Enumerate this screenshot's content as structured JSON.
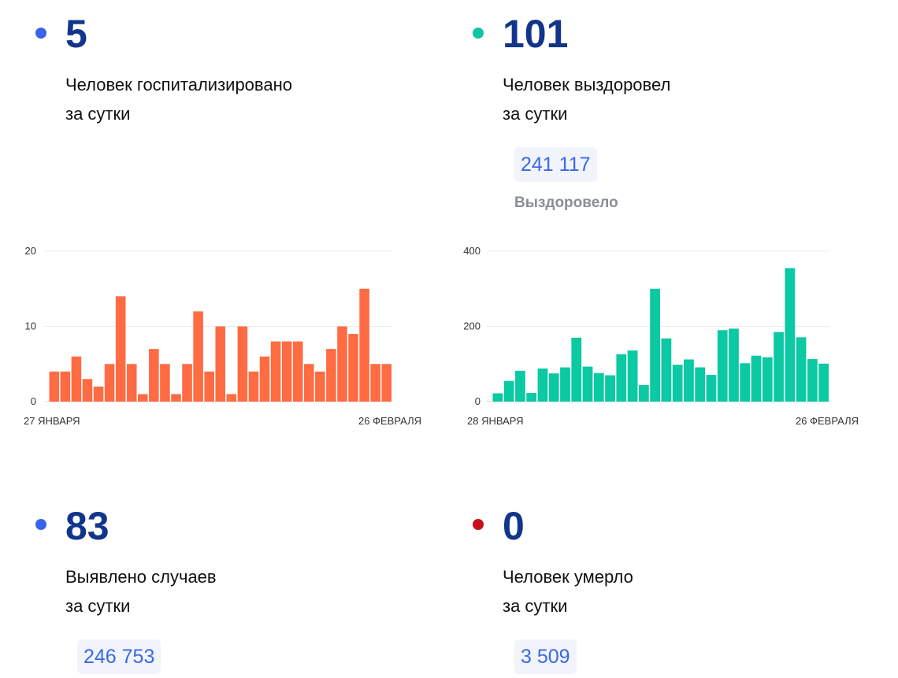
{
  "stats": {
    "hospitalized": {
      "value": "5",
      "line1": "Человек госпитализировано",
      "line2": "за сутки",
      "dot_color": "#3764ea"
    },
    "recovered": {
      "value": "101",
      "line1": "Человек выздоровел",
      "line2": "за сутки",
      "total": "241 117",
      "total_label": "Выздоровело",
      "dot_color": "#0fc6a3"
    },
    "cases": {
      "value": "83",
      "line1": "Выявлено случаев",
      "line2": "за сутки",
      "total": "246 753",
      "dot_color": "#3764ea"
    },
    "deaths": {
      "value": "0",
      "line1": "Человек умерло",
      "line2": "за сутки",
      "total": "3 509",
      "dot_color": "#c8101b"
    }
  },
  "chart_data": [
    {
      "type": "bar",
      "color": "#ff6b42",
      "ylim": [
        0,
        20
      ],
      "yticks": [
        "0",
        "10",
        "20"
      ],
      "x_start": "27 ЯНВАРЯ",
      "x_end": "26 ФЕВРАЛЯ",
      "values": [
        4,
        4,
        6,
        3,
        2,
        5,
        14,
        5,
        1,
        7,
        5,
        1,
        5,
        12,
        4,
        10,
        1,
        10,
        4,
        6,
        8,
        8,
        8,
        5,
        4,
        7,
        10,
        9,
        15,
        5,
        5
      ]
    },
    {
      "type": "bar",
      "color": "#0ac9a3",
      "ylim": [
        0,
        400
      ],
      "yticks": [
        "0",
        "200",
        "400"
      ],
      "x_start": "28 ЯНВАРЯ",
      "x_end": "26 ФЕВРАЛЯ",
      "values": [
        22,
        55,
        82,
        23,
        88,
        75,
        91,
        170,
        93,
        76,
        70,
        126,
        136,
        44,
        300,
        168,
        98,
        112,
        91,
        71,
        190,
        194,
        102,
        122,
        118,
        185,
        355,
        171,
        113,
        101
      ]
    }
  ]
}
